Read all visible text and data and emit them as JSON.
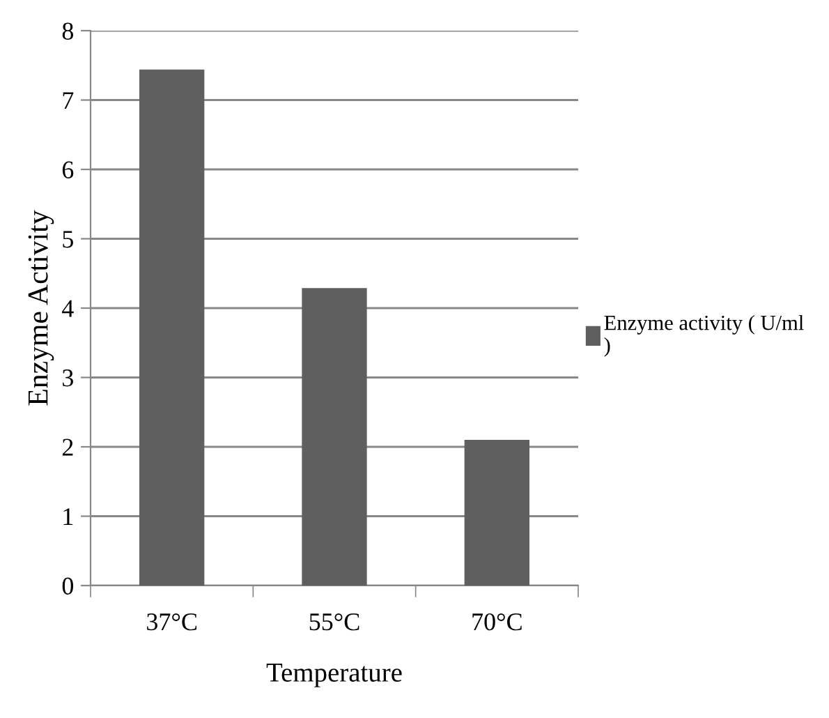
{
  "chart_data": {
    "type": "bar",
    "xlabel": "Temperature",
    "ylabel": "Enzyme Activity",
    "categories": [
      "37°C",
      "55°C",
      "70°C"
    ],
    "series": [
      {
        "name": "Enzyme activity ( U/ml\n)",
        "color": "#5f5f5f",
        "values": [
          7.44,
          4.29,
          2.1
        ]
      }
    ],
    "ylim": [
      0,
      8
    ],
    "yticks": [
      0,
      1,
      2,
      3,
      4,
      5,
      6,
      7,
      8
    ],
    "grid": "y",
    "legend": "right"
  }
}
